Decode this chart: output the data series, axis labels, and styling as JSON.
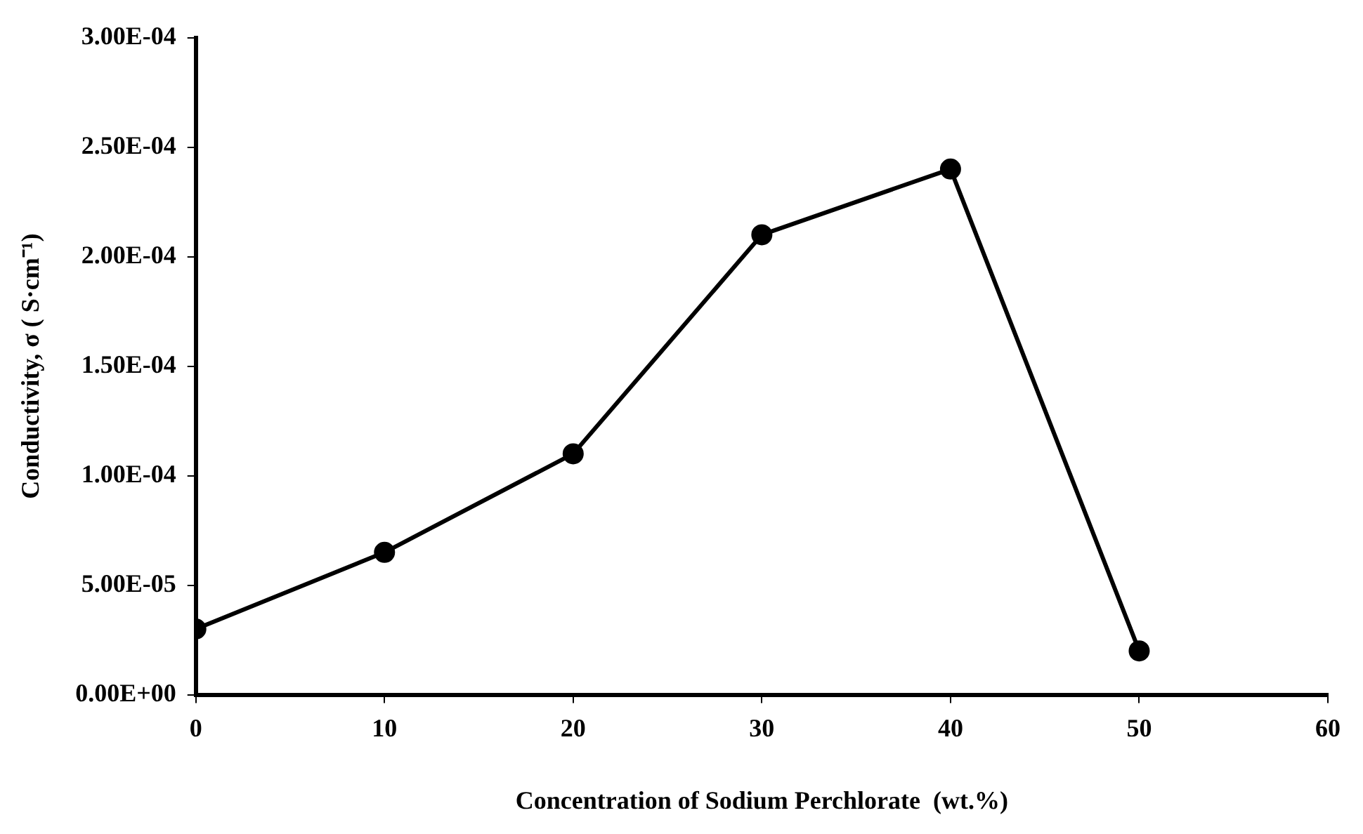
{
  "chart_data": {
    "type": "line",
    "xlabel": "Concentration of Sodium Perchlorate  (wt.%)",
    "ylabel": "Conductivity, σ ( S·cm⁻¹)",
    "x": [
      0,
      10,
      20,
      30,
      40,
      50
    ],
    "series": [
      {
        "color": "#000000",
        "values": [
          3e-05,
          6.5e-05,
          0.00011,
          0.00021,
          0.00024,
          2e-05
        ]
      }
    ],
    "xlim": [
      0,
      60
    ],
    "xticks": [
      0,
      10,
      20,
      30,
      40,
      50,
      60
    ],
    "ylim": [
      0,
      0.0003
    ],
    "yticks": [
      {
        "value": 0,
        "label": "0.00E+00"
      },
      {
        "value": 5e-05,
        "label": "5.00E-05"
      },
      {
        "value": 0.0001,
        "label": "1.00E-04"
      },
      {
        "value": 0.00015,
        "label": "1.50E-04"
      },
      {
        "value": 0.0002,
        "label": "2.00E-04"
      },
      {
        "value": 0.00025,
        "label": "2.50E-04"
      },
      {
        "value": 0.0003,
        "label": "3.00E-04"
      }
    ],
    "grid": false,
    "legend": false,
    "marker": "circle",
    "line_style": "solid"
  }
}
